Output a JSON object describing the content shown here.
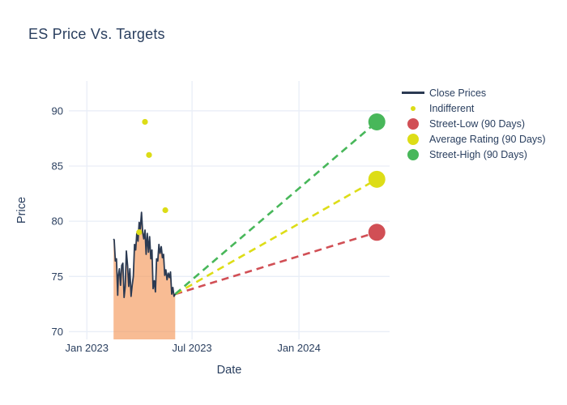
{
  "title": "ES Price Vs. Targets",
  "colors": {
    "text": "#2a3f5f",
    "grid": "#e9eef7",
    "close_line": "#2b3a52",
    "close_fill": "rgba(244,152,90,0.65)",
    "indifferent": "#dcdc16",
    "street_low": "#d14f55",
    "average_rating": "#dddd17",
    "street_high": "#48b75a"
  },
  "legend": {
    "items": [
      {
        "label": "Close Prices",
        "marker": "line",
        "color": "#2b3a52"
      },
      {
        "label": "Indifferent",
        "marker": "dot-small",
        "color": "#dcdc16"
      },
      {
        "label": "Street-Low (90 Days)",
        "marker": "dot-large",
        "color": "#d14f55"
      },
      {
        "label": "Average Rating (90 Days)",
        "marker": "dot-large",
        "color": "#dddd17"
      },
      {
        "label": "Street-High (90 Days)",
        "marker": "dot-large",
        "color": "#48b75a"
      }
    ]
  },
  "chart_data": {
    "type": "line",
    "title": "ES Price Vs. Targets",
    "xlabel": "Date",
    "ylabel": "Price",
    "grid": true,
    "legend_position": "right",
    "x_ticks": [
      {
        "label": "Jan 2023",
        "date": "2023-01-01"
      },
      {
        "label": "Jul 2023",
        "date": "2023-07-01"
      },
      {
        "label": "Jan 2024",
        "date": "2024-01-01"
      }
    ],
    "y_ticks": [
      70,
      75,
      80,
      85,
      90
    ],
    "x_range_days_from_2023_01_01": [
      -31,
      521
    ],
    "y_range": [
      69.3,
      92.7
    ],
    "series": [
      {
        "name": "Close Prices",
        "type": "line",
        "area_fill_to_bottom": true,
        "color": "#2b3a52",
        "fill_color": "rgba(244,152,90,0.65)",
        "x": [
          "2023-02-16",
          "2023-02-17",
          "2023-02-19",
          "2023-02-21",
          "2023-02-23",
          "2023-02-24",
          "2023-02-26",
          "2023-02-28",
          "2023-03-02",
          "2023-03-04",
          "2023-03-06",
          "2023-03-08",
          "2023-03-10",
          "2023-03-12",
          "2023-03-14",
          "2023-03-16",
          "2023-03-18",
          "2023-03-20",
          "2023-03-22",
          "2023-03-24",
          "2023-03-26",
          "2023-03-28",
          "2023-03-30",
          "2023-04-01",
          "2023-04-03",
          "2023-04-05",
          "2023-04-07",
          "2023-04-09",
          "2023-04-11",
          "2023-04-13",
          "2023-04-15",
          "2023-04-17",
          "2023-04-19",
          "2023-04-21",
          "2023-04-23",
          "2023-04-25",
          "2023-04-27",
          "2023-04-29",
          "2023-05-01",
          "2023-05-03",
          "2023-05-05",
          "2023-05-07",
          "2023-05-09",
          "2023-05-11",
          "2023-05-13",
          "2023-05-15",
          "2023-05-17",
          "2023-05-19",
          "2023-05-21",
          "2023-05-23",
          "2023-05-25",
          "2023-05-27",
          "2023-05-29",
          "2023-05-31",
          "2023-06-02"
        ],
        "y": [
          78.4,
          78.3,
          76.4,
          76.6,
          73.3,
          75.0,
          75.7,
          74.2,
          76.0,
          76.2,
          73.1,
          74.1,
          77.3,
          76.0,
          74.1,
          75.7,
          73.2,
          74.2,
          75.0,
          77.9,
          77.4,
          78.9,
          78.2,
          79.9,
          79.3,
          80.8,
          79.0,
          78.4,
          79.2,
          77.0,
          78.9,
          77.2,
          78.6,
          76.6,
          77.4,
          73.9,
          74.6,
          73.6,
          76.6,
          76.4,
          77.9,
          77.1,
          77.7,
          76.7,
          77.0,
          75.1,
          75.6,
          74.7,
          75.3,
          74.9,
          75.4,
          73.4,
          74.0,
          73.2,
          73.4
        ]
      },
      {
        "name": "Indifferent",
        "type": "scatter",
        "color": "#dcdc16",
        "marker_radius": 3.6,
        "x": [
          "2023-04-01",
          "2023-04-11",
          "2023-04-18",
          "2023-05-16"
        ],
        "y": [
          79,
          89,
          86,
          81
        ]
      },
      {
        "name": "Street-Low (90 Days)",
        "type": "target",
        "color": "#d14f55",
        "marker_radius": 10.5,
        "x": [
          "2024-05-14"
        ],
        "y": [
          79.0
        ]
      },
      {
        "name": "Average Rating (90 Days)",
        "type": "target",
        "color": "#dddd17",
        "marker_radius": 10.5,
        "x": [
          "2024-05-14"
        ],
        "y": [
          83.8
        ]
      },
      {
        "name": "Street-High (90 Days)",
        "type": "target",
        "color": "#48b75a",
        "marker_radius": 10.5,
        "x": [
          "2024-05-14"
        ],
        "y": [
          89.0
        ]
      }
    ]
  }
}
